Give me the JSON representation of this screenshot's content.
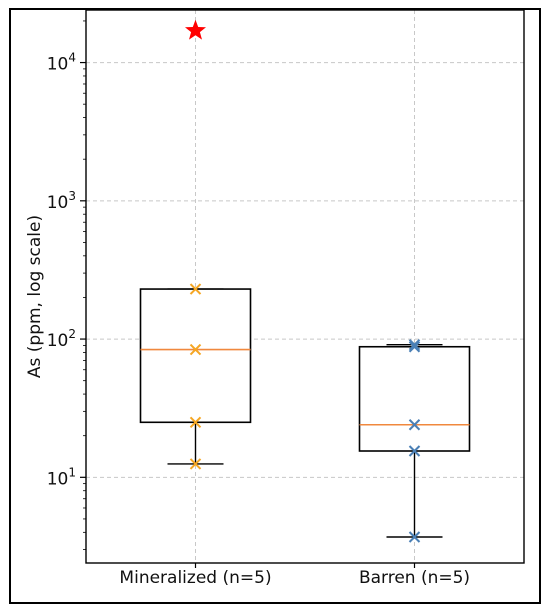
{
  "chart_data": {
    "type": "box",
    "ylabel": "As (ppm, log scale)",
    "yscale": "log",
    "ylim": [
      2.4,
      24000
    ],
    "yticks": [
      {
        "value": 10,
        "base": "10",
        "exp": "1"
      },
      {
        "value": 100,
        "base": "10",
        "exp": "2"
      },
      {
        "value": 1000,
        "base": "10",
        "exp": "3"
      },
      {
        "value": 10000,
        "base": "10",
        "exp": "4"
      }
    ],
    "grid": true,
    "categories": [
      "Mineralized (n=5)",
      "Barren (n=5)"
    ],
    "boxes": [
      {
        "q1": 25,
        "median": 84,
        "q3": 230,
        "whislo": 12.5,
        "whishi": 230,
        "points": [
          230,
          84,
          25,
          12.5
        ],
        "outliers": [
          17000
        ],
        "marker_color": "#f5a623",
        "outlier_color": "#ff0000"
      },
      {
        "q1": 15.5,
        "median": 24,
        "q3": 88,
        "whislo": 3.7,
        "whishi": 91,
        "points": [
          91,
          88,
          24,
          15.5,
          3.7
        ],
        "outliers": [],
        "marker_color": "#4a7fb5",
        "outlier_color": "#ff0000"
      }
    ],
    "box_color": "#000000",
    "median_color": "#f0883e"
  }
}
